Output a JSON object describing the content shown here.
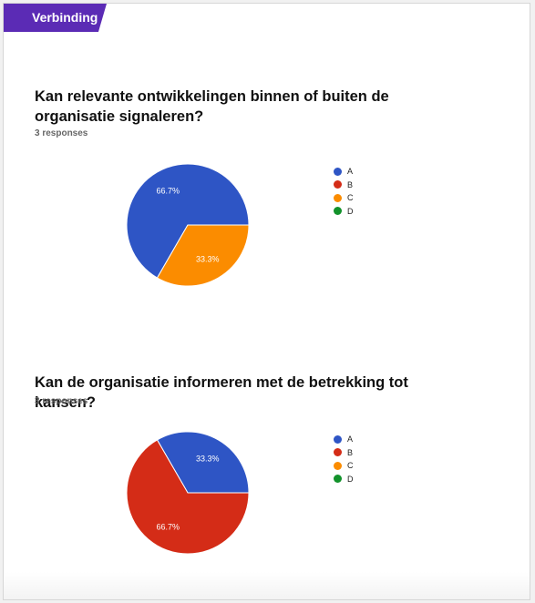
{
  "section": {
    "label": "Verbinding"
  },
  "colors": {
    "A": "#2e55c5",
    "B": "#d42c17",
    "C": "#fb8c00",
    "D": "#12922b",
    "section_bg": "#5b2bb5"
  },
  "questions": [
    {
      "title": "Kan relevante ontwikkelingen binnen of buiten de organisatie signaleren?",
      "responses": "3 responses"
    },
    {
      "title": "Kan de organisatie informeren met de betrekking tot kansen?",
      "responses": "3 responses"
    }
  ],
  "chart_data": [
    {
      "type": "pie",
      "categories": [
        "A",
        "B",
        "C",
        "D"
      ],
      "values": [
        2,
        0,
        1,
        0
      ],
      "slice_labels": [
        "66.7%",
        "",
        "33.3%",
        ""
      ],
      "legend_position": "right"
    },
    {
      "type": "pie",
      "categories": [
        "A",
        "B",
        "C",
        "D"
      ],
      "values": [
        1,
        2,
        0,
        0
      ],
      "slice_labels": [
        "33.3%",
        "66.7%",
        "",
        ""
      ],
      "legend_position": "right"
    }
  ]
}
